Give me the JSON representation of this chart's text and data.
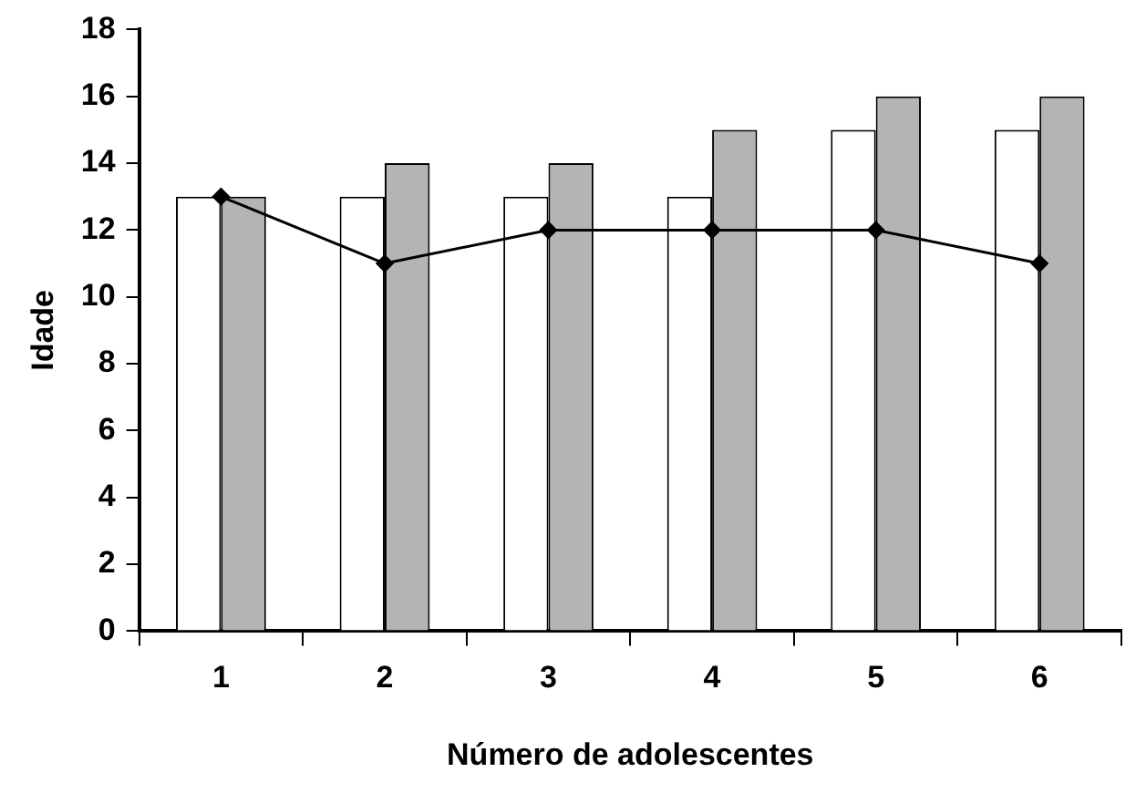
{
  "chart_data": {
    "type": "bar",
    "xlabel": "Número de adolescentes",
    "ylabel": "Idade",
    "categories": [
      "1",
      "2",
      "3",
      "4",
      "5",
      "6"
    ],
    "series": [
      {
        "color": "#ffffff",
        "values": [
          13,
          13,
          13,
          13,
          15,
          15
        ]
      },
      {
        "color": "#b4b4b4",
        "values": [
          13,
          14,
          14,
          15,
          16,
          16
        ]
      },
      {
        "type": "line",
        "color": "#000000",
        "values": [
          13,
          11,
          12,
          12,
          12,
          11
        ]
      }
    ],
    "ylim": [
      0,
      18
    ],
    "yticks": [
      0,
      2,
      4,
      6,
      8,
      10,
      12,
      14,
      16,
      18
    ],
    "grid": false,
    "legend": false,
    "marker": "diamond",
    "line_style": "solid"
  }
}
